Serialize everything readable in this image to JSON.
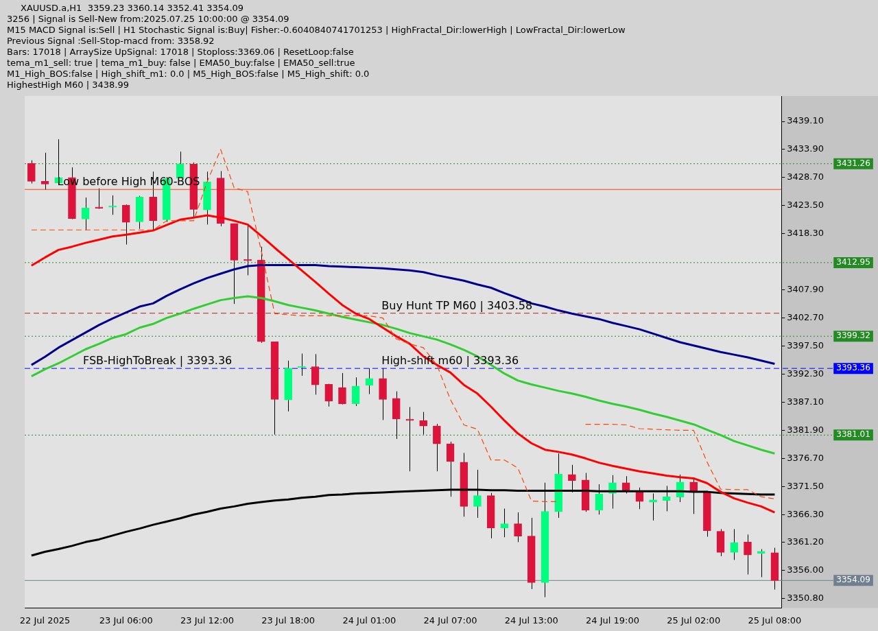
{
  "chart_data": {
    "type": "candlestick",
    "title": "XAUUSD.a,H1  3359.23 3360.14 3352.41 3354.09",
    "categories": [
      null,
      "22 Jul 2025",
      null,
      null,
      null,
      null,
      null,
      "23 Jul 06:00",
      null,
      null,
      null,
      null,
      null,
      "23 Jul 12:00",
      null,
      null,
      null,
      null,
      null,
      "23 Jul 18:00",
      null,
      null,
      null,
      null,
      null,
      "24 Jul 01:00",
      null,
      null,
      null,
      null,
      null,
      "24 Jul 07:00",
      null,
      null,
      null,
      null,
      null,
      "24 Jul 13:00",
      null,
      null,
      null,
      null,
      null,
      "24 Jul 19:00",
      null,
      null,
      null,
      null,
      null,
      "25 Jul 02:00",
      null,
      null,
      null,
      null,
      null,
      "25 Jul 08:00"
    ],
    "ohlc": [
      [
        3431.3,
        3431.9,
        3427.6,
        3428.0
      ],
      [
        3428.0,
        3433.3,
        3426.4,
        3427.5
      ],
      [
        3427.7,
        3435.8,
        3427.4,
        3428.7
      ],
      [
        3428.7,
        3430.6,
        3421.0,
        3421.1
      ],
      [
        3421.0,
        3425.0,
        3419.0,
        3423.1
      ],
      [
        3423.1,
        3426.7,
        3422.9,
        3423.0
      ],
      [
        3423.2,
        3425.4,
        3421.8,
        3423.4
      ],
      [
        3423.6,
        3423.7,
        3416.3,
        3420.4
      ],
      [
        3420.5,
        3425.3,
        3419.2,
        3425.1
      ],
      [
        3425.1,
        3429.8,
        3418.8,
        3420.7
      ],
      [
        3420.9,
        3428.8,
        3420.5,
        3428.5
      ],
      [
        3428.6,
        3433.5,
        3428.6,
        3431.2
      ],
      [
        3431.2,
        3431.5,
        3421.2,
        3422.8
      ],
      [
        3422.7,
        3429.8,
        3420.0,
        3427.9
      ],
      [
        3428.6,
        3429.9,
        3419.7,
        3420.2
      ],
      [
        3420.2,
        3420.2,
        3405.3,
        3413.4
      ],
      [
        3413.4,
        3419.9,
        3410.6,
        3413.3
      ],
      [
        3413.4,
        3415.9,
        3398.1,
        3398.3
      ],
      [
        3398.3,
        3398.3,
        3381.1,
        3387.6
      ],
      [
        3387.5,
        3394.8,
        3385.4,
        3393.4
      ],
      [
        3393.5,
        3396.1,
        3392.0,
        3393.7
      ],
      [
        3393.7,
        3396.0,
        3388.5,
        3390.3
      ],
      [
        3390.4,
        3390.5,
        3386.3,
        3387.3
      ],
      [
        3389.8,
        3392.5,
        3386.7,
        3386.8
      ],
      [
        3386.8,
        3391.7,
        3386.4,
        3390.1
      ],
      [
        3390.2,
        3393.4,
        3388.6,
        3391.5
      ],
      [
        3391.5,
        3393.4,
        3383.8,
        3387.6
      ],
      [
        3387.8,
        3389.1,
        3380.3,
        3384.0
      ],
      [
        3383.9,
        3386.2,
        3374.3,
        3383.7
      ],
      [
        3383.7,
        3385.3,
        3381.1,
        3382.7
      ],
      [
        3382.7,
        3383.1,
        3374.3,
        3379.4
      ],
      [
        3379.4,
        3379.8,
        3369.6,
        3376.1
      ],
      [
        3376.0,
        3377.7,
        3365.9,
        3367.8
      ],
      [
        3367.8,
        3374.6,
        3365.7,
        3369.8
      ],
      [
        3369.8,
        3370.3,
        3361.9,
        3363.8
      ],
      [
        3363.8,
        3367.4,
        3362.1,
        3364.6
      ],
      [
        3364.6,
        3366.7,
        3361.2,
        3362.3
      ],
      [
        3362.3,
        3365.7,
        3352.5,
        3353.7
      ],
      [
        3353.7,
        3372.2,
        3351.0,
        3366.9
      ],
      [
        3366.8,
        3377.6,
        3365.7,
        3373.8
      ],
      [
        3373.7,
        3375.5,
        3370.4,
        3372.6
      ],
      [
        3372.7,
        3374.0,
        3366.8,
        3367.1
      ],
      [
        3367.1,
        3371.9,
        3366.3,
        3370.1
      ],
      [
        3370.2,
        3373.6,
        3367.4,
        3372.2
      ],
      [
        3372.2,
        3373.4,
        3370.2,
        3370.7
      ],
      [
        3370.5,
        3371.3,
        3367.3,
        3368.7
      ],
      [
        3368.6,
        3370.2,
        3365.2,
        3369.0
      ],
      [
        3368.9,
        3371.6,
        3366.9,
        3369.6
      ],
      [
        3369.5,
        3373.7,
        3368.6,
        3372.3
      ],
      [
        3372.3,
        3372.8,
        3366.4,
        3370.7
      ],
      [
        3370.4,
        3370.7,
        3362.2,
        3363.3
      ],
      [
        3363.2,
        3363.6,
        3358.6,
        3359.3
      ],
      [
        3359.3,
        3363.6,
        3357.9,
        3361.1
      ],
      [
        3361.2,
        3362.6,
        3355.2,
        3358.8
      ],
      [
        3359.1,
        3359.9,
        3354.7,
        3359.5
      ],
      [
        3359.23,
        3360.14,
        3352.41,
        3354.09
      ]
    ],
    "colors": [
      "#dc143c",
      "#dc143c",
      "#00ff7f",
      "#dc143c",
      "#00ff7f",
      "#dc143c",
      "#00ff7f",
      "#dc143c",
      "#00ff7f",
      "#dc143c",
      "#00ff7f",
      "#00ff7f",
      "#dc143c",
      "#00ff7f",
      "#dc143c",
      "#dc143c",
      "#dc143c",
      "#dc143c",
      "#dc143c",
      "#00ff7f",
      "#00ff7f",
      "#dc143c",
      "#dc143c",
      "#dc143c",
      "#00ff7f",
      "#00ff7f",
      "#dc143c",
      "#dc143c",
      "#dc143c",
      "#dc143c",
      "#dc143c",
      "#dc143c",
      "#dc143c",
      "#00ff7f",
      "#dc143c",
      "#00ff7f",
      "#dc143c",
      "#dc143c",
      "#00ff7f",
      "#00ff7f",
      "#dc143c",
      "#dc143c",
      "#00ff7f",
      "#00ff7f",
      "#dc143c",
      "#dc143c",
      "#00ff7f",
      "#00ff7f",
      "#00ff7f",
      "#dc143c",
      "#dc143c",
      "#dc143c",
      "#00ff7f",
      "#dc143c",
      "#00ff7f",
      "#dc143c"
    ],
    "series": [
      {
        "type": "line",
        "color": "#000000",
        "values": [
          3358.7,
          3359.4,
          3359.9,
          3360.5,
          3361.2,
          3361.7,
          3362.4,
          3363.1,
          3363.7,
          3364.4,
          3365.0,
          3365.6,
          3366.3,
          3366.8,
          3367.4,
          3367.8,
          3368.3,
          3368.6,
          3368.9,
          3369.1,
          3369.4,
          3369.6,
          3369.9,
          3370.0,
          3370.2,
          3370.3,
          3370.4,
          3370.5,
          3370.6,
          3370.7,
          3370.8,
          3370.9,
          3370.9,
          3370.9,
          3370.8,
          3370.8,
          3370.7,
          3370.7,
          3370.7,
          3370.7,
          3370.7,
          3370.7,
          3370.6,
          3370.6,
          3370.6,
          3370.6,
          3370.6,
          3370.6,
          3370.6,
          3370.5,
          3370.5,
          3370.3,
          3370.2,
          3370.1,
          3370.0,
          3370.0
        ]
      },
      {
        "type": "line",
        "color": "#00008b",
        "values": [
          3394.0,
          3395.5,
          3397.2,
          3398.6,
          3400.0,
          3401.4,
          3402.6,
          3403.7,
          3404.8,
          3405.4,
          3406.8,
          3408.0,
          3409.1,
          3410.1,
          3410.9,
          3411.7,
          3412.3,
          3412.5,
          3412.5,
          3412.5,
          3412.5,
          3412.5,
          3412.3,
          3412.2,
          3412.1,
          3412.0,
          3411.9,
          3411.7,
          3411.5,
          3411.2,
          3410.6,
          3410.1,
          3409.6,
          3408.9,
          3408.3,
          3407.3,
          3406.4,
          3405.4,
          3404.8,
          3404.1,
          3403.5,
          3403.0,
          3402.5,
          3401.8,
          3401.2,
          3400.6,
          3399.8,
          3399.0,
          3398.2,
          3397.6,
          3397.0,
          3396.4,
          3395.9,
          3395.4,
          3394.8,
          3394.2
        ]
      },
      {
        "type": "line",
        "color": "#32cd32",
        "values": [
          3391.9,
          3393.2,
          3394.3,
          3395.6,
          3396.9,
          3397.9,
          3399.0,
          3399.7,
          3400.9,
          3401.6,
          3402.7,
          3403.5,
          3404.4,
          3405.2,
          3406.0,
          3406.4,
          3406.7,
          3406.4,
          3405.8,
          3405.1,
          3404.6,
          3404.1,
          3403.5,
          3402.9,
          3402.4,
          3401.9,
          3401.4,
          3400.7,
          3399.9,
          3399.3,
          3398.7,
          3397.8,
          3396.8,
          3395.6,
          3394.0,
          3392.4,
          3391.1,
          3390.4,
          3389.8,
          3389.2,
          3388.7,
          3388.1,
          3387.4,
          3386.8,
          3386.3,
          3385.7,
          3385.0,
          3384.4,
          3383.7,
          3383.0,
          3382.0,
          3381.0,
          3379.9,
          3379.1,
          3378.3,
          3377.6
        ]
      },
      {
        "type": "line",
        "color": "#ff0000",
        "values": [
          3412.4,
          3413.9,
          3415.3,
          3415.9,
          3416.6,
          3417.2,
          3417.8,
          3418.1,
          3418.5,
          3418.9,
          3419.9,
          3420.9,
          3421.3,
          3421.7,
          3421.3,
          3420.7,
          3420.0,
          3417.9,
          3415.7,
          3413.6,
          3411.5,
          3409.4,
          3407.2,
          3405.1,
          3403.5,
          3402.5,
          3400.9,
          3399.3,
          3397.9,
          3395.6,
          3394.0,
          3392.6,
          3390.3,
          3388.7,
          3386.3,
          3383.7,
          3381.3,
          3379.5,
          3378.3,
          3377.9,
          3377.4,
          3376.7,
          3375.9,
          3375.3,
          3374.8,
          3374.3,
          3373.9,
          3373.5,
          3373.2,
          3373.0,
          3372.1,
          3370.5,
          3369.3,
          3368.5,
          3367.8,
          3366.7
        ]
      },
      {
        "type": "line",
        "color": "#ff4500",
        "line_style": "dashed",
        "values": [
          3419.0,
          3419.0,
          3419.0,
          3419.0,
          3419.0,
          3419.0,
          3419.0,
          3419.0,
          3419.0,
          3419.0,
          3420.7,
          3420.7,
          3420.7,
          3427.9,
          3433.9,
          3426.8,
          3426.1,
          3415.2,
          3403.5,
          3403.3,
          3403.1,
          3403.1,
          3403.1,
          3403.1,
          3403.1,
          3403.1,
          3402.7,
          3398.8,
          3397.9,
          3397.2,
          3394.0,
          3387.6,
          3382.9,
          3382.1,
          3376.4,
          3376.4,
          3374.9,
          3368.8,
          3368.7,
          3368.7,
          null,
          3383.0,
          3383.0,
          3383.0,
          3382.9,
          3382.2,
          3382.1,
          3382.0,
          3381.9,
          3381.9,
          3376.0,
          3371.0,
          3370.9,
          3370.9,
          3369.6,
          3369.2
        ]
      }
    ],
    "ylim": [
      3349.0,
      3443.8
    ],
    "yticks": [
      {
        "value": 3439.1,
        "label": "3439.10"
      },
      {
        "value": 3433.9,
        "label": "3433.90"
      },
      {
        "value": 3428.7,
        "label": "3428.70"
      },
      {
        "value": 3423.5,
        "label": "3423.50"
      },
      {
        "value": 3418.3,
        "label": "3418.30"
      },
      {
        "value": 3407.9,
        "label": "3407.90"
      },
      {
        "value": 3402.7,
        "label": "3402.70"
      },
      {
        "value": 3397.5,
        "label": "3397.50"
      },
      {
        "value": 3392.3,
        "label": "3392.30"
      },
      {
        "value": 3387.1,
        "label": "3387.10"
      },
      {
        "value": 3381.9,
        "label": "3381.90"
      },
      {
        "value": 3376.7,
        "label": "3376.70"
      },
      {
        "value": 3371.5,
        "label": "3371.50"
      },
      {
        "value": 3366.3,
        "label": "3366.30"
      },
      {
        "value": 3361.2,
        "label": "3361.20"
      },
      {
        "value": 3356,
        "label": "3356.00"
      },
      {
        "value": 3350.8,
        "label": "3350.80"
      }
    ],
    "ref_lines": [
      {
        "axis": "y",
        "value": 3431.26,
        "label": "3431.26",
        "color": "#228b22",
        "line_style": "dotted"
      },
      {
        "axis": "y",
        "value": 3412.95,
        "label": "3412.95",
        "color": "#228b22",
        "line_style": "dotted"
      },
      {
        "axis": "y",
        "value": 3399.32,
        "label": "3399.32",
        "color": "#228b22",
        "line_style": "dotted"
      },
      {
        "axis": "y",
        "value": 3381.01,
        "label": "3381.01",
        "color": "#228b22",
        "line_style": "dotted"
      },
      {
        "axis": "y",
        "value": 3393.36,
        "label": "3393.36",
        "color": "#0000ff",
        "line_style": "dashed"
      },
      {
        "axis": "y",
        "value": 3354.09,
        "label": "3354.09",
        "color": "#708090",
        "line_style": "solid"
      },
      {
        "axis": "y",
        "value": 3403.58,
        "color": "#b22222",
        "line_style": "dashed"
      },
      {
        "axis": "y",
        "value": 3426.5,
        "color": "#ff4500",
        "line_style": "solid"
      }
    ],
    "annotations": [
      "3256 | Signal is Sell-New from:2025.07.25 10:00:00 @ 3354.09",
      "M15 MACD Signal is:Sell | H1 Stochastic Signal is:Buy| Fisher:-0.6040840741701253 | HighFractal_Dir:lowerHigh | LowFractal_Dir:lowerLow",
      "Previous Signal :Sell-Stop-macd from: 3358.92",
      "Bars: 17018 | ArraySize UpSignal: 17018 | Stoploss:3369.06 | ResetLoop:false",
      "tema_m1_sell: true | tema_m1_buy: false | EMA50_buy:false | EMA50_sell:true",
      "M1_High_BOS:false | High_shift_m1: 0.0 | M5_High_BOS:false | M5_High_shift: 0.0",
      "HighestHigh M60 | 3438.99",
      {
        "text": "Low before High M60-BOS",
        "x": "22 Jul 2025",
        "y": 3426.5
      },
      {
        "text": "Buy Hunt TP M60 | 3403.58",
        "x": "24 Jul 01:00",
        "y": 3403.58
      },
      {
        "text": "High-shift m60 | 3393.36",
        "x": "24 Jul 01:00",
        "y": 3393.36
      },
      {
        "text": "FSB-HighToBreak | 3393.36",
        "y": 3393.36
      }
    ],
    "grid": false,
    "legend": false,
    "marker": "none"
  }
}
